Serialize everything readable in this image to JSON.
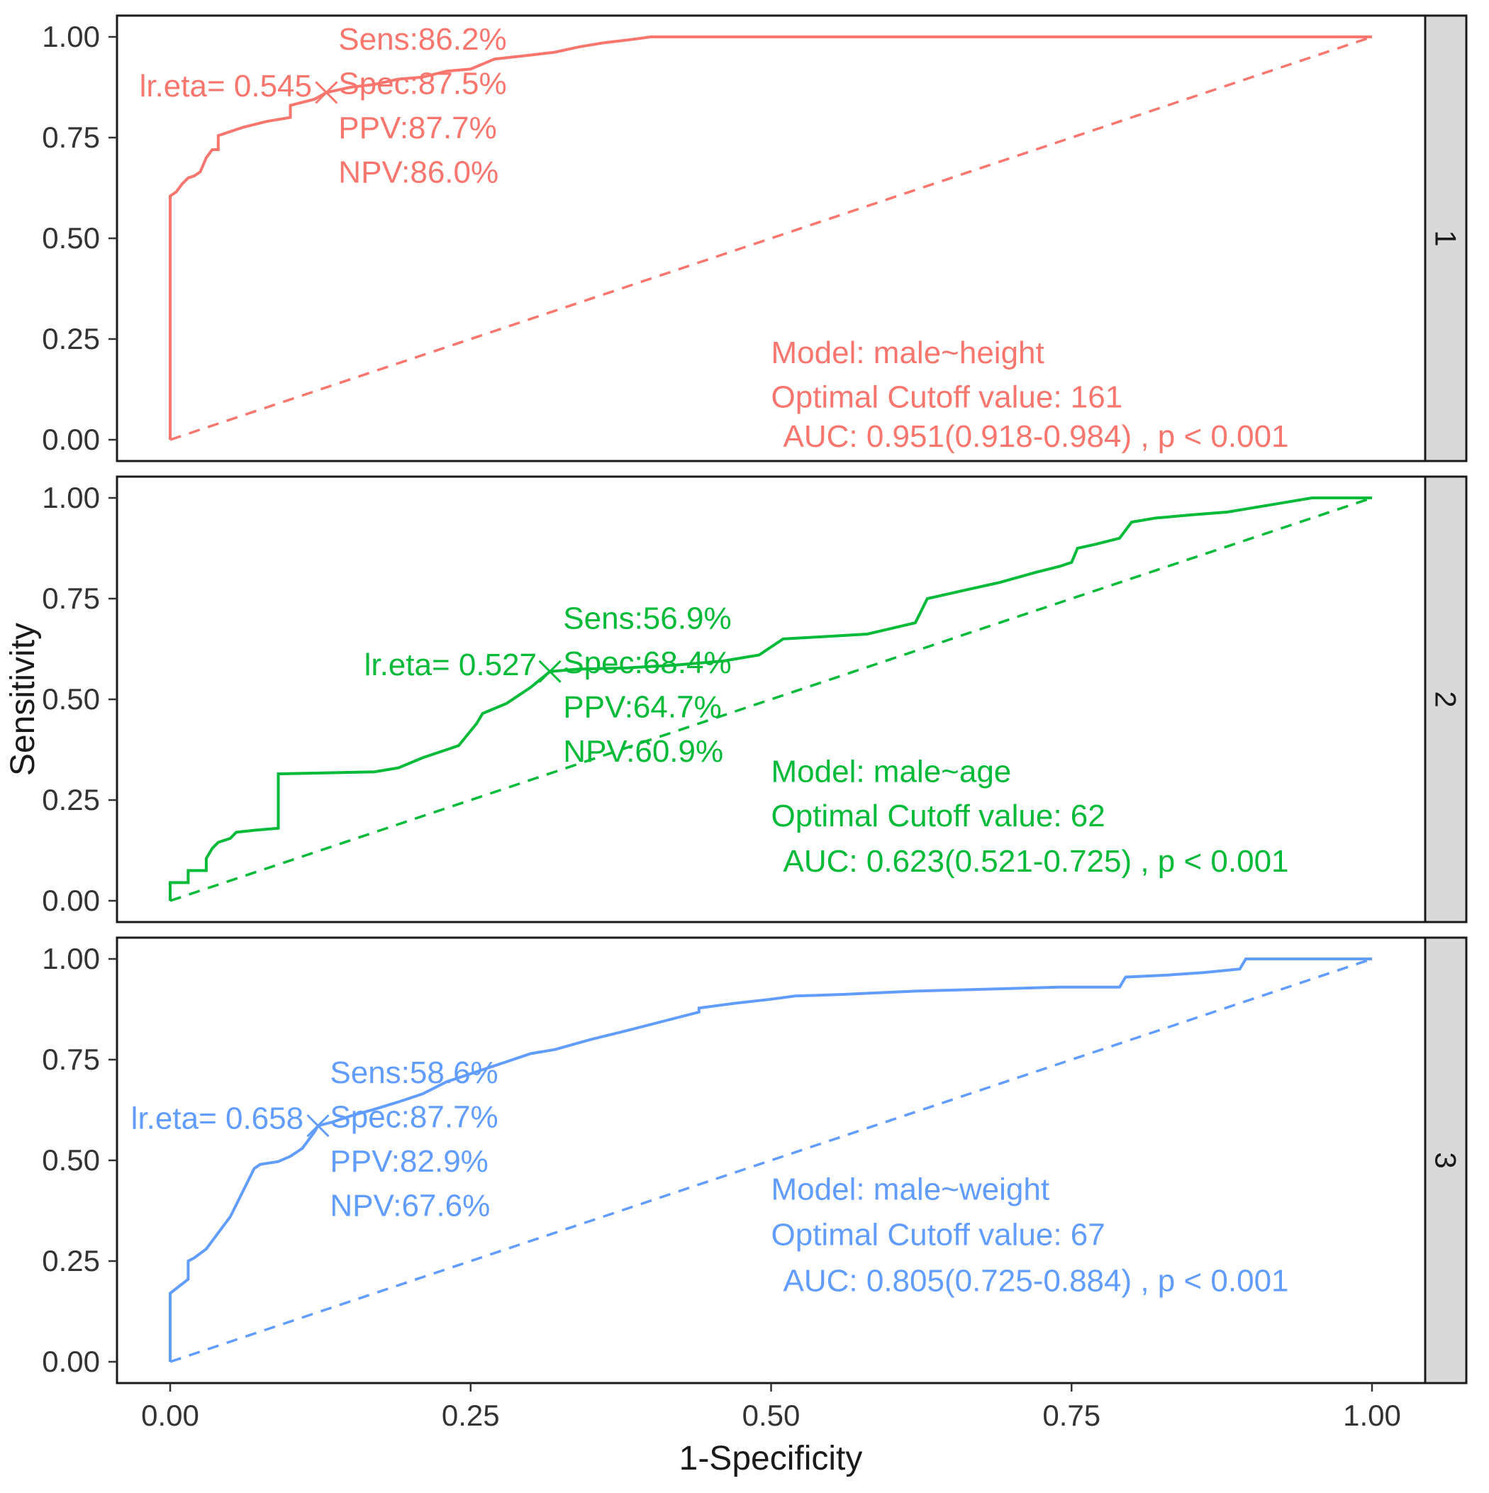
{
  "figure": {
    "ylabel": "Sensitivity",
    "xlabel": "1-Specificity",
    "axis": {
      "xlim": [
        0,
        1
      ],
      "ylim": [
        0,
        1
      ],
      "x_ticks": [
        0,
        0.25,
        0.5,
        0.75,
        1
      ],
      "x_tick_labels": [
        "0.00",
        "0.25",
        "0.50",
        "0.75",
        "1.00"
      ],
      "y_ticks": [
        0,
        0.25,
        0.5,
        0.75,
        1
      ],
      "y_tick_labels": [
        "0.00",
        "0.25",
        "0.50",
        "0.75",
        "1.00"
      ],
      "grid": false
    },
    "strip_fill": "#d9d9d9",
    "panel_border": "#1a1a1a"
  },
  "chart_data": [
    {
      "type": "line",
      "facet_label": "1",
      "color": "#f8766d",
      "xlabel": "1-Specificity",
      "ylabel": "Sensitivity",
      "xlim": [
        0,
        1
      ],
      "ylim": [
        0,
        1
      ],
      "legend_position": "none",
      "series": [
        {
          "name": "ROC curve male~height",
          "style": "solid",
          "points": [
            [
              0,
              0
            ],
            [
              0,
              0.605
            ],
            [
              0.005,
              0.615
            ],
            [
              0.01,
              0.635
            ],
            [
              0.015,
              0.65
            ],
            [
              0.02,
              0.655
            ],
            [
              0.025,
              0.665
            ],
            [
              0.03,
              0.7
            ],
            [
              0.035,
              0.72
            ],
            [
              0.04,
              0.72
            ],
            [
              0.04,
              0.755
            ],
            [
              0.06,
              0.775
            ],
            [
              0.08,
              0.79
            ],
            [
              0.1,
              0.8
            ],
            [
              0.1,
              0.83
            ],
            [
              0.12,
              0.845
            ],
            [
              0.13,
              0.862
            ],
            [
              0.15,
              0.875
            ],
            [
              0.17,
              0.882
            ],
            [
              0.19,
              0.895
            ],
            [
              0.21,
              0.9
            ],
            [
              0.23,
              0.915
            ],
            [
              0.25,
              0.92
            ],
            [
              0.27,
              0.945
            ],
            [
              0.3,
              0.955
            ],
            [
              0.32,
              0.962
            ],
            [
              0.34,
              0.975
            ],
            [
              0.36,
              0.985
            ],
            [
              0.38,
              0.992
            ],
            [
              0.4,
              1
            ],
            [
              1,
              1
            ]
          ]
        },
        {
          "name": "reference diagonal",
          "style": "dashed",
          "points": [
            [
              0,
              0
            ],
            [
              1,
              1
            ]
          ]
        }
      ],
      "cutoff_marker": {
        "shape": "x",
        "x": 0.13,
        "y": 0.862
      },
      "annotations": [
        {
          "id": "lr-eta",
          "text": "lr.eta= 0.545",
          "x": 0.118,
          "y": 0.852,
          "anchor": "end"
        },
        {
          "id": "sens",
          "text": "Sens:86.2%",
          "x": 0.14,
          "y": 0.968,
          "anchor": "start"
        },
        {
          "id": "spec",
          "text": "Spec:87.5%",
          "x": 0.14,
          "y": 0.858,
          "anchor": "start"
        },
        {
          "id": "ppv",
          "text": "PPV:87.7%",
          "x": 0.14,
          "y": 0.748,
          "anchor": "start"
        },
        {
          "id": "npv",
          "text": "NPV:86.0%",
          "x": 0.14,
          "y": 0.638,
          "anchor": "start"
        },
        {
          "id": "model",
          "text": "Model: male~height",
          "x": 0.5,
          "y": 0.19,
          "anchor": "start"
        },
        {
          "id": "cutoff",
          "text": "Optimal Cutoff value:  161",
          "x": 0.5,
          "y": 0.08,
          "anchor": "start"
        },
        {
          "id": "auc",
          "text": "AUC:  0.951(0.918-0.984) , p < 0.001",
          "x": 0.51,
          "y": -0.018,
          "anchor": "start"
        }
      ]
    },
    {
      "type": "line",
      "facet_label": "2",
      "color": "#00ba38",
      "xlabel": "1-Specificity",
      "ylabel": "Sensitivity",
      "xlim": [
        0,
        1
      ],
      "ylim": [
        0,
        1
      ],
      "legend_position": "none",
      "series": [
        {
          "name": "ROC curve male~age",
          "style": "solid",
          "points": [
            [
              0,
              0
            ],
            [
              0,
              0.045
            ],
            [
              0.015,
              0.045
            ],
            [
              0.015,
              0.075
            ],
            [
              0.03,
              0.075
            ],
            [
              0.03,
              0.105
            ],
            [
              0.035,
              0.13
            ],
            [
              0.04,
              0.145
            ],
            [
              0.05,
              0.155
            ],
            [
              0.055,
              0.17
            ],
            [
              0.07,
              0.175
            ],
            [
              0.09,
              0.18
            ],
            [
              0.09,
              0.315
            ],
            [
              0.17,
              0.32
            ],
            [
              0.19,
              0.33
            ],
            [
              0.21,
              0.355
            ],
            [
              0.24,
              0.385
            ],
            [
              0.255,
              0.44
            ],
            [
              0.26,
              0.465
            ],
            [
              0.28,
              0.49
            ],
            [
              0.3,
              0.53
            ],
            [
              0.316,
              0.569
            ],
            [
              0.34,
              0.575
            ],
            [
              0.38,
              0.578
            ],
            [
              0.42,
              0.585
            ],
            [
              0.46,
              0.595
            ],
            [
              0.49,
              0.61
            ],
            [
              0.51,
              0.65
            ],
            [
              0.54,
              0.655
            ],
            [
              0.58,
              0.662
            ],
            [
              0.62,
              0.69
            ],
            [
              0.63,
              0.75
            ],
            [
              0.66,
              0.77
            ],
            [
              0.69,
              0.79
            ],
            [
              0.72,
              0.815
            ],
            [
              0.74,
              0.83
            ],
            [
              0.75,
              0.84
            ],
            [
              0.755,
              0.875
            ],
            [
              0.77,
              0.885
            ],
            [
              0.79,
              0.9
            ],
            [
              0.8,
              0.94
            ],
            [
              0.82,
              0.95
            ],
            [
              0.85,
              0.958
            ],
            [
              0.88,
              0.965
            ],
            [
              0.9,
              0.975
            ],
            [
              0.93,
              0.99
            ],
            [
              0.95,
              1
            ],
            [
              1,
              1
            ]
          ]
        },
        {
          "name": "reference diagonal",
          "style": "dashed",
          "points": [
            [
              0,
              0
            ],
            [
              1,
              1
            ]
          ]
        }
      ],
      "cutoff_marker": {
        "shape": "x",
        "x": 0.316,
        "y": 0.569
      },
      "annotations": [
        {
          "id": "lr-eta",
          "text": "lr.eta= 0.527",
          "x": 0.305,
          "y": 0.56,
          "anchor": "end"
        },
        {
          "id": "sens",
          "text": "Sens:56.9%",
          "x": 0.327,
          "y": 0.675,
          "anchor": "start"
        },
        {
          "id": "spec",
          "text": "Spec:68.4%",
          "x": 0.327,
          "y": 0.565,
          "anchor": "start"
        },
        {
          "id": "ppv",
          "text": "PPV:64.7%",
          "x": 0.327,
          "y": 0.455,
          "anchor": "start"
        },
        {
          "id": "npv",
          "text": "NPV:60.9%",
          "x": 0.327,
          "y": 0.345,
          "anchor": "start"
        },
        {
          "id": "model",
          "text": "Model: male~age",
          "x": 0.5,
          "y": 0.295,
          "anchor": "start"
        },
        {
          "id": "cutoff",
          "text": "Optimal Cutoff value:  62",
          "x": 0.5,
          "y": 0.185,
          "anchor": "start"
        },
        {
          "id": "auc",
          "text": "AUC:  0.623(0.521-0.725) , p < 0.001",
          "x": 0.51,
          "y": 0.072,
          "anchor": "start"
        }
      ]
    },
    {
      "type": "line",
      "facet_label": "3",
      "color": "#619cff",
      "xlabel": "1-Specificity",
      "ylabel": "Sensitivity",
      "xlim": [
        0,
        1
      ],
      "ylim": [
        0,
        1
      ],
      "legend_position": "none",
      "series": [
        {
          "name": "ROC curve male~weight",
          "style": "solid",
          "points": [
            [
              0,
              0
            ],
            [
              0,
              0.17
            ],
            [
              0.015,
              0.205
            ],
            [
              0.015,
              0.25
            ],
            [
              0.02,
              0.258
            ],
            [
              0.03,
              0.28
            ],
            [
              0.04,
              0.32
            ],
            [
              0.05,
              0.36
            ],
            [
              0.06,
              0.42
            ],
            [
              0.07,
              0.48
            ],
            [
              0.075,
              0.49
            ],
            [
              0.09,
              0.497
            ],
            [
              0.1,
              0.51
            ],
            [
              0.11,
              0.53
            ],
            [
              0.12,
              0.57
            ],
            [
              0.123,
              0.586
            ],
            [
              0.135,
              0.595
            ],
            [
              0.15,
              0.61
            ],
            [
              0.17,
              0.627
            ],
            [
              0.19,
              0.645
            ],
            [
              0.21,
              0.665
            ],
            [
              0.23,
              0.695
            ],
            [
              0.25,
              0.715
            ],
            [
              0.27,
              0.735
            ],
            [
              0.285,
              0.75
            ],
            [
              0.3,
              0.765
            ],
            [
              0.32,
              0.775
            ],
            [
              0.35,
              0.8
            ],
            [
              0.38,
              0.822
            ],
            [
              0.41,
              0.845
            ],
            [
              0.44,
              0.868
            ],
            [
              0.44,
              0.878
            ],
            [
              0.47,
              0.89
            ],
            [
              0.5,
              0.9
            ],
            [
              0.52,
              0.908
            ],
            [
              0.56,
              0.912
            ],
            [
              0.62,
              0.92
            ],
            [
              0.68,
              0.925
            ],
            [
              0.74,
              0.93
            ],
            [
              0.79,
              0.93
            ],
            [
              0.795,
              0.955
            ],
            [
              0.83,
              0.96
            ],
            [
              0.86,
              0.966
            ],
            [
              0.89,
              0.975
            ],
            [
              0.895,
              1
            ],
            [
              1,
              1
            ]
          ]
        },
        {
          "name": "reference diagonal",
          "style": "dashed",
          "points": [
            [
              0,
              0
            ],
            [
              1,
              1
            ]
          ]
        }
      ],
      "cutoff_marker": {
        "shape": "x",
        "x": 0.123,
        "y": 0.586
      },
      "annotations": [
        {
          "id": "lr-eta",
          "text": "lr.eta= 0.658",
          "x": 0.111,
          "y": 0.578,
          "anchor": "end"
        },
        {
          "id": "sens",
          "text": "Sens:58.6%",
          "x": 0.133,
          "y": 0.692,
          "anchor": "start"
        },
        {
          "id": "spec",
          "text": "Spec:87.7%",
          "x": 0.133,
          "y": 0.582,
          "anchor": "start"
        },
        {
          "id": "ppv",
          "text": "PPV:82.9%",
          "x": 0.133,
          "y": 0.472,
          "anchor": "start"
        },
        {
          "id": "npv",
          "text": "NPV:67.6%",
          "x": 0.133,
          "y": 0.362,
          "anchor": "start"
        },
        {
          "id": "model",
          "text": "Model: male~weight",
          "x": 0.5,
          "y": 0.402,
          "anchor": "start"
        },
        {
          "id": "cutoff",
          "text": "Optimal Cutoff value:  67",
          "x": 0.5,
          "y": 0.29,
          "anchor": "start"
        },
        {
          "id": "auc",
          "text": "AUC:  0.805(0.725-0.884) , p < 0.001",
          "x": 0.51,
          "y": 0.175,
          "anchor": "start"
        }
      ]
    }
  ]
}
